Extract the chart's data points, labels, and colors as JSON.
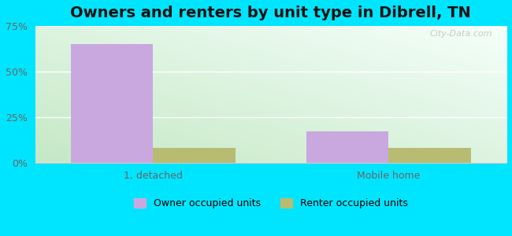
{
  "title": "Owners and renters by unit type in Dibrell, TN",
  "categories": [
    "1, detached",
    "Mobile home"
  ],
  "owner_values": [
    65.0,
    17.0
  ],
  "renter_values": [
    8.0,
    8.0
  ],
  "owner_color": "#c9a8e0",
  "renter_color": "#b8bc72",
  "ylim": [
    0,
    75
  ],
  "yticks": [
    0,
    25,
    50,
    75
  ],
  "yticklabels": [
    "0%",
    "25%",
    "50%",
    "75%"
  ],
  "bar_width": 0.35,
  "legend_owner": "Owner occupied units",
  "legend_renter": "Renter occupied units",
  "title_fontsize": 14,
  "watermark": "City-Data.com",
  "fig_bg": "#00e5ff",
  "plot_bg_bottom_left": "#c5e8c5",
  "plot_bg_top_right": "#f5fffa",
  "grid_color": "#ffffff",
  "spine_color": "#cccccc",
  "tick_color": "#666666"
}
